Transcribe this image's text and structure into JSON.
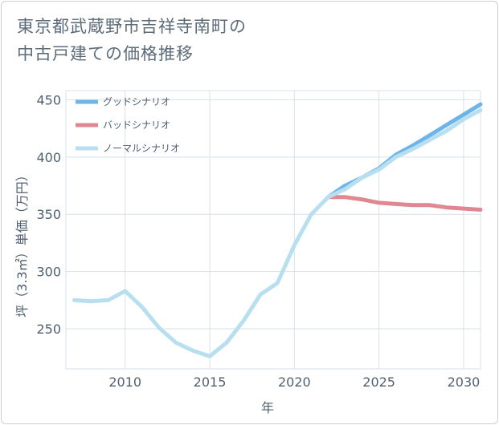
{
  "title_lines": [
    "東京都武蔵野市吉祥寺南町の",
    "中古戸建ての価格推移"
  ],
  "chart_data": {
    "type": "line",
    "title": "東京都武蔵野市吉祥寺南町の中古戸建ての価格推移",
    "xlabel": "年",
    "ylabel": "坪（3.3㎡）単価（万円）",
    "xlim": [
      2006.5,
      2031
    ],
    "ylim": [
      215,
      458
    ],
    "xticks": [
      2010,
      2015,
      2020,
      2025,
      2030
    ],
    "yticks": [
      250,
      300,
      350,
      400,
      450
    ],
    "grid": true,
    "legend_position": "top-left",
    "series": [
      {
        "name": "グッドシナリオ",
        "color": "#6cb4ea",
        "x": [
          2022,
          2023,
          2024,
          2025,
          2026,
          2027,
          2028,
          2029,
          2030,
          2031
        ],
        "values": [
          365,
          375,
          382,
          390,
          402,
          410,
          419,
          428,
          437,
          446
        ]
      },
      {
        "name": "バッドシナリオ",
        "color": "#e08891",
        "x": [
          2022,
          2023,
          2024,
          2025,
          2026,
          2027,
          2028,
          2029,
          2030,
          2031
        ],
        "values": [
          365,
          365,
          363,
          360,
          359,
          358,
          358,
          356,
          355,
          354
        ]
      },
      {
        "name": "ノーマルシナリオ",
        "color": "#b8dff0",
        "x": [
          2007,
          2008,
          2009,
          2010,
          2011,
          2012,
          2013,
          2014,
          2015,
          2016,
          2017,
          2018,
          2019,
          2020,
          2021,
          2022,
          2023,
          2024,
          2025,
          2026,
          2027,
          2028,
          2029,
          2030,
          2031
        ],
        "values": [
          275,
          274,
          275,
          283,
          269,
          251,
          238,
          231,
          226,
          238,
          257,
          280,
          290,
          323,
          350,
          365,
          372,
          382,
          389,
          400,
          407,
          415,
          423,
          433,
          441
        ]
      }
    ]
  }
}
